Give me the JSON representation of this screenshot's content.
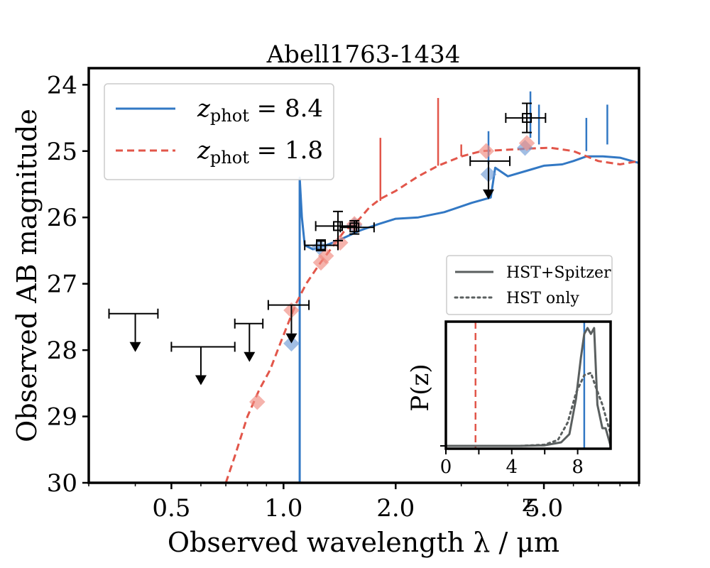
{
  "chart_data": {
    "type": "line",
    "title": "Abell1763-1434",
    "xlabel": "Observed wavelength λ / μm",
    "ylabel": "Observed AB magnitude",
    "xscale": "log",
    "xlim": [
      0.3,
      9.0
    ],
    "ylim": [
      30,
      23.75
    ],
    "x_ticks": [
      {
        "value": 0.5,
        "label": "0.5"
      },
      {
        "value": 1.0,
        "label": "1.0"
      },
      {
        "value": 2.0,
        "label": "2.0"
      },
      {
        "value": 5.0,
        "label": "5.0"
      }
    ],
    "y_ticks": [
      {
        "value": 24,
        "label": "24"
      },
      {
        "value": 25,
        "label": "25"
      },
      {
        "value": 26,
        "label": "26"
      },
      {
        "value": 27,
        "label": "27"
      },
      {
        "value": 28,
        "label": "28"
      },
      {
        "value": 29,
        "label": "29"
      },
      {
        "value": 30,
        "label": "30"
      }
    ],
    "legend": [
      {
        "z_symbol": "z",
        "sub": "phot",
        "value_text": " = 8.4",
        "color": "#3278c4",
        "style": "solid"
      },
      {
        "z_symbol": "z",
        "sub": "phot",
        "value_text": " = 1.8",
        "color": "#e2564a",
        "style": "dashed"
      }
    ],
    "series": [
      {
        "name": "z_phot = 8.4 template",
        "color": "#3278c4",
        "style": "solid",
        "points": [
          [
            1.105,
            30.0
          ],
          [
            1.105,
            25.4
          ],
          [
            1.12,
            26.0
          ],
          [
            1.14,
            26.42
          ],
          [
            1.2,
            26.48
          ],
          [
            1.3,
            26.42
          ],
          [
            1.4,
            26.35
          ],
          [
            1.6,
            26.2
          ],
          [
            1.8,
            26.1
          ],
          [
            2.0,
            26.02
          ],
          [
            2.3,
            26.0
          ],
          [
            2.7,
            25.92
          ],
          [
            3.2,
            25.78
          ],
          [
            3.6,
            25.7
          ],
          [
            3.7,
            25.25
          ],
          [
            4.0,
            25.38
          ],
          [
            4.6,
            25.28
          ],
          [
            5.0,
            25.22
          ],
          [
            5.6,
            25.2
          ],
          [
            6.0,
            25.15
          ],
          [
            6.5,
            25.08
          ],
          [
            7.2,
            25.08
          ],
          [
            8.0,
            25.1
          ],
          [
            9.0,
            25.18
          ]
        ]
      },
      {
        "name": "z_phot = 1.8 template",
        "color": "#e2564a",
        "style": "dashed",
        "points": [
          [
            0.7,
            30.0
          ],
          [
            0.74,
            29.6
          ],
          [
            0.8,
            29.0
          ],
          [
            0.86,
            28.6
          ],
          [
            0.92,
            28.3
          ],
          [
            0.98,
            27.9
          ],
          [
            1.02,
            27.65
          ],
          [
            1.08,
            27.3
          ],
          [
            1.15,
            27.0
          ],
          [
            1.25,
            26.7
          ],
          [
            1.35,
            26.45
          ],
          [
            1.45,
            26.22
          ],
          [
            1.6,
            26.02
          ],
          [
            1.7,
            25.85
          ],
          [
            1.82,
            25.72
          ],
          [
            2.0,
            25.6
          ],
          [
            2.3,
            25.38
          ],
          [
            2.6,
            25.22
          ],
          [
            3.0,
            25.08
          ],
          [
            3.4,
            25.0
          ],
          [
            4.0,
            24.98
          ],
          [
            4.6,
            24.96
          ],
          [
            5.2,
            24.95
          ],
          [
            6.0,
            25.0
          ],
          [
            7.0,
            25.15
          ],
          [
            8.0,
            25.2
          ],
          [
            9.0,
            25.15
          ]
        ]
      }
    ],
    "lines": [
      {
        "name": "z = 8.4 template",
        "color": "#3278c4",
        "x": [
          1.105,
          3.55,
          4.6,
          4.85,
          6.5,
          7.4
        ],
        "bottom": [
          25.4,
          25.2,
          24.8,
          24.9,
          25.0,
          24.9
        ],
        "top": [
          25.4,
          24.7,
          24.1,
          24.3,
          24.5,
          24.3
        ]
      },
      {
        "name": "z = 1.8 template",
        "color": "#e2564a",
        "x": [
          1.82,
          2.6,
          3.0
        ],
        "bottom": [
          25.75,
          25.22,
          25.08
        ],
        "top": [
          24.8,
          24.2,
          24.9
        ]
      }
    ],
    "model_photometry": [
      {
        "name": "z = 8.4 model",
        "color": "#6f9bd6",
        "points": [
          [
            1.05,
            27.9
          ],
          [
            1.25,
            26.45
          ],
          [
            1.55,
            26.12
          ],
          [
            3.55,
            25.35
          ],
          [
            4.45,
            24.95
          ]
        ]
      },
      {
        "name": "z = 1.8 model",
        "color": "#f08a80",
        "points": [
          [
            0.85,
            28.78
          ],
          [
            1.05,
            27.4
          ],
          [
            1.26,
            26.68
          ],
          [
            1.3,
            26.58
          ],
          [
            1.42,
            26.38
          ],
          [
            1.55,
            26.1
          ],
          [
            3.5,
            25.0
          ],
          [
            4.5,
            24.88
          ]
        ]
      }
    ],
    "detections": [
      {
        "x": 1.26,
        "y": 26.42,
        "xerr": [
          0.12,
          0.14
        ],
        "yerr": 0.08
      },
      {
        "x": 1.4,
        "y": 26.13,
        "xerr": [
          0.18,
          0.17
        ],
        "yerr": 0.22
      },
      {
        "x": 1.55,
        "y": 26.15,
        "xerr": [
          0.13,
          0.2
        ],
        "yerr": 0.1
      },
      {
        "x": 4.5,
        "y": 24.5,
        "xerr": [
          0.55,
          0.55
        ],
        "yerr": 0.22
      }
    ],
    "upper_limits": [
      {
        "x": 0.4,
        "y": 27.45,
        "xerr": [
          0.06,
          0.06
        ]
      },
      {
        "x": 0.6,
        "y": 27.95,
        "xerr": [
          0.1,
          0.14
        ]
      },
      {
        "x": 0.81,
        "y": 27.6,
        "xerr": [
          0.07,
          0.07
        ]
      },
      {
        "x": 1.05,
        "y": 27.32,
        "xerr": [
          0.14,
          0.12
        ]
      },
      {
        "x": 3.55,
        "y": 25.15,
        "xerr": [
          0.38,
          0.5
        ]
      }
    ]
  },
  "inset": {
    "xlabel": "z",
    "ylabel": "P(z)",
    "xlim": [
      0,
      10
    ],
    "ticks": [
      {
        "value": 0,
        "label": "0"
      },
      {
        "value": 4,
        "label": "4"
      },
      {
        "value": 8,
        "label": "8"
      }
    ],
    "legend": [
      {
        "label": "HST+Spitzer",
        "color": "#5a5f5f",
        "style": "solid"
      },
      {
        "label": "HST only",
        "color": "#5a5f5f",
        "style": "dotted"
      }
    ],
    "series": [
      {
        "name": "HST+Spitzer",
        "points": [
          [
            0,
            0.0
          ],
          [
            4.5,
            0.0
          ],
          [
            6.0,
            0.005
          ],
          [
            7.0,
            0.03
          ],
          [
            7.5,
            0.1
          ],
          [
            7.9,
            0.4
          ],
          [
            8.2,
            0.75
          ],
          [
            8.4,
            0.95
          ],
          [
            8.6,
            1.0
          ],
          [
            8.8,
            0.95
          ],
          [
            9.0,
            1.0
          ],
          [
            9.2,
            0.35
          ],
          [
            9.5,
            0.15
          ],
          [
            9.7,
            0.15
          ],
          [
            10,
            0.0
          ]
        ]
      },
      {
        "name": "HST only",
        "points": [
          [
            0,
            0.0
          ],
          [
            4.5,
            0.0
          ],
          [
            6.0,
            0.01
          ],
          [
            6.8,
            0.05
          ],
          [
            7.4,
            0.2
          ],
          [
            7.9,
            0.45
          ],
          [
            8.4,
            0.6
          ],
          [
            8.8,
            0.62
          ],
          [
            9.1,
            0.5
          ],
          [
            9.5,
            0.35
          ],
          [
            9.8,
            0.2
          ],
          [
            10,
            0.1
          ]
        ]
      }
    ],
    "markers": [
      {
        "z": 1.8,
        "color": "#e2564a",
        "style": "dashed"
      },
      {
        "z": 8.4,
        "color": "#3278c4",
        "style": "solid"
      }
    ]
  }
}
